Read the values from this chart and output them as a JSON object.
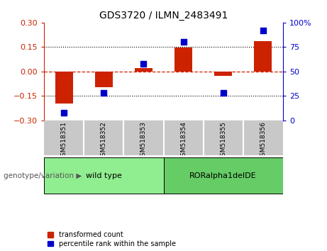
{
  "title": "GDS3720 / ILMN_2483491",
  "samples": [
    "GSM518351",
    "GSM518352",
    "GSM518353",
    "GSM518354",
    "GSM518355",
    "GSM518356"
  ],
  "transformed_counts": [
    -0.195,
    -0.095,
    0.02,
    0.145,
    -0.025,
    0.185
  ],
  "percentile_ranks": [
    8,
    28,
    58,
    80,
    28,
    92
  ],
  "groups": [
    {
      "label": "wild type",
      "samples": [
        0,
        1,
        2
      ],
      "color": "#90EE90"
    },
    {
      "label": "RORalpha1delDE",
      "samples": [
        3,
        4,
        5
      ],
      "color": "#66CC66"
    }
  ],
  "ylim_left": [
    -0.3,
    0.3
  ],
  "ylim_right": [
    0,
    100
  ],
  "yticks_left": [
    -0.3,
    -0.15,
    0,
    0.15,
    0.3
  ],
  "yticks_right": [
    0,
    25,
    50,
    75,
    100
  ],
  "hlines_dotted": [
    -0.15,
    0.15
  ],
  "hline_dashed": 0,
  "bar_color": "#CC2200",
  "scatter_color": "#0000CC",
  "bar_width": 0.45,
  "scatter_size": 35,
  "background_plot": "#FFFFFF",
  "background_label": "#C8C8C8",
  "legend_labels": [
    "transformed count",
    "percentile rank within the sample"
  ],
  "genotype_label": "genotype/variation",
  "yticklabels_right": [
    "0",
    "25",
    "50",
    "75",
    "100%"
  ]
}
